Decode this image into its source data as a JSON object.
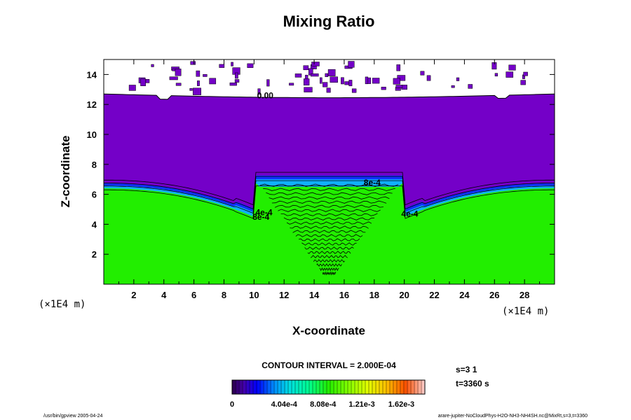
{
  "chart_data": {
    "type": "heatmap",
    "title": "Mixing Ratio",
    "xlabel": "X-coordinate",
    "ylabel": "Z-coordinate",
    "x_units": "(×1E4 m)",
    "y_units": "(×1E4 m)",
    "xlim": [
      0,
      30
    ],
    "ylim": [
      0,
      15
    ],
    "x_ticks": [
      "2",
      "4",
      "6",
      "8",
      "10",
      "12",
      "14",
      "16",
      "18",
      "20",
      "22",
      "24",
      "26",
      "28"
    ],
    "y_ticks": [
      "2",
      "4",
      "6",
      "8",
      "10",
      "12",
      "14"
    ],
    "contour_labels": [
      {
        "text": "0.00",
        "x": 10.2,
        "z": 12.4
      },
      {
        "text": "8e-4",
        "x": 17.3,
        "z": 6.6
      },
      {
        "text": "4e-4",
        "x": 19.8,
        "z": 4.5
      },
      {
        "text": "4e-4",
        "x": 10.1,
        "z": 4.6
      },
      {
        "text": "8e-4",
        "x": 9.9,
        "z": 4.3
      }
    ],
    "contour_interval": "CONTOUR INTERVAL = 2.000E-04",
    "colorbar": {
      "min": 0,
      "max": 0.002,
      "tick_labels": [
        "0",
        "4.04e-4",
        "8.08e-4",
        "1.21e-3",
        "1.62e-3"
      ],
      "tick_values": [
        0,
        0.000404,
        0.000808,
        0.00121,
        0.00162
      ]
    },
    "grid": false
  },
  "info": {
    "step": "s=3 1",
    "time": "t=3360 s"
  },
  "footer": {
    "left": "/usr/bin/gpview 2005-04-24",
    "right": "arare-jupiter-NoCloudPhys-H2O-NH3-NH4SH.nc@MixRt,s=3,t=3360"
  },
  "colors": {
    "purple": "#7400c8",
    "green": "#22ee00",
    "blue": "#1030ff"
  }
}
